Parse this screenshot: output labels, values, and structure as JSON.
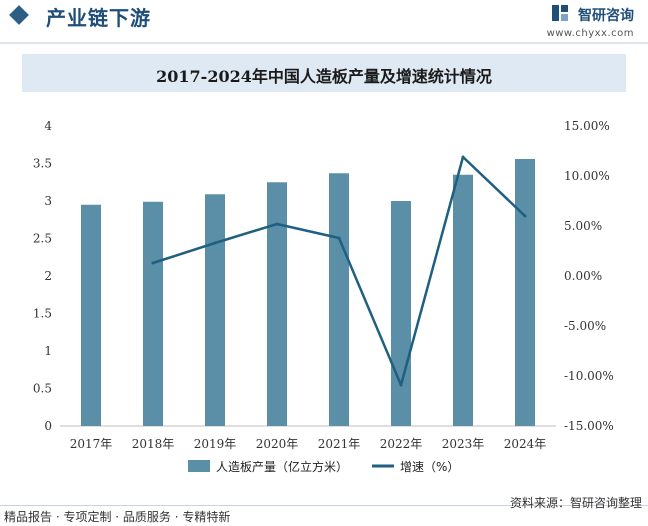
{
  "header": {
    "section_title": "产业链下游",
    "brand_name": "智研咨询",
    "brand_url": "www.chyxx.com"
  },
  "footer": {
    "left_text": "精品报告 · 专项定制 · 品质服务 · 专精特新",
    "source_text": "资料来源：智研咨询整理"
  },
  "colors": {
    "bar": "#5b8fa8",
    "line": "#1f5f80",
    "title_bg": "#dfe9f3",
    "brand": "#1f4e79"
  },
  "chart_data": {
    "type": "bar",
    "title": "2017-2024年中国人造板产量及增速统计情况",
    "categories": [
      "2017年",
      "2018年",
      "2019年",
      "2020年",
      "2021年",
      "2022年",
      "2023年",
      "2024年"
    ],
    "series": [
      {
        "name": "人造板产量（亿立方米）",
        "type": "bar",
        "axis": "left",
        "values": [
          2.95,
          2.99,
          3.09,
          3.25,
          3.37,
          3.0,
          3.35,
          3.56
        ]
      },
      {
        "name": "增速（%）",
        "type": "line",
        "axis": "right",
        "values": [
          null,
          1.3,
          3.3,
          5.2,
          3.8,
          -10.9,
          11.9,
          6.0
        ]
      }
    ],
    "left_axis": {
      "ylim": [
        0,
        4
      ],
      "ticks": [
        "0",
        "0.5",
        "1",
        "1.5",
        "2",
        "2.5",
        "3",
        "3.5",
        "4"
      ]
    },
    "right_axis": {
      "ylim": [
        -15,
        15
      ],
      "ticks": [
        "-15.00%",
        "-10.00%",
        "-5.00%",
        "0.00%",
        "5.00%",
        "10.00%",
        "15.00%"
      ]
    },
    "legend_position": "bottom"
  }
}
